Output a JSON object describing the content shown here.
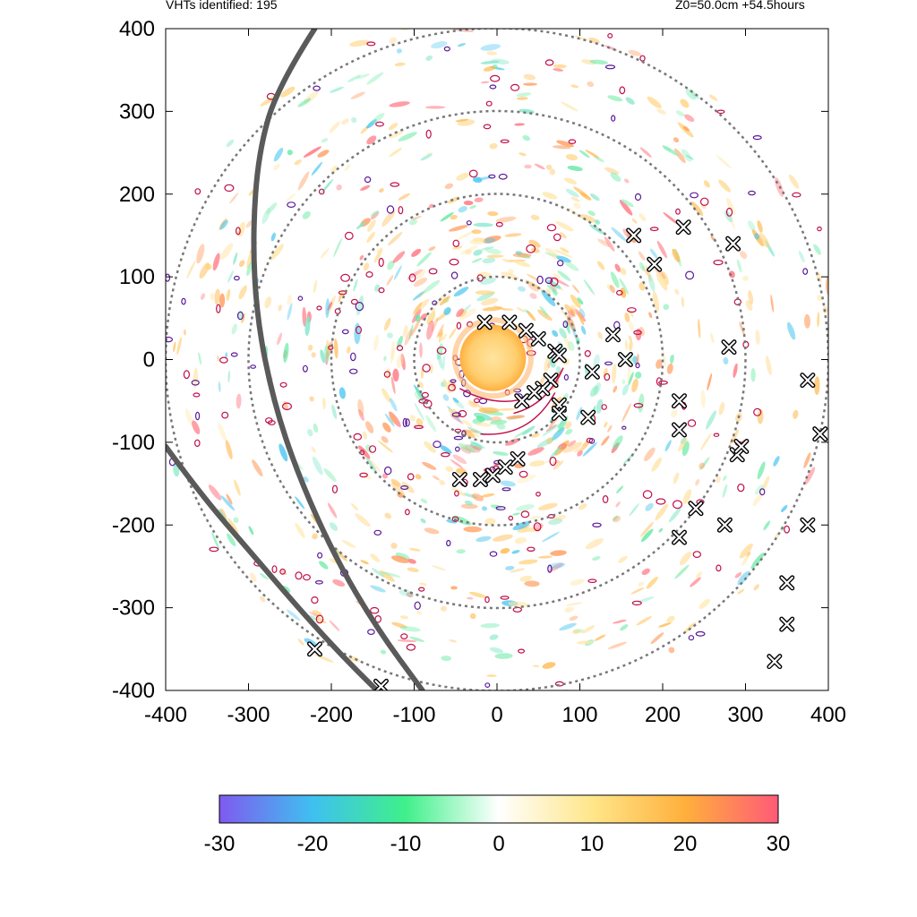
{
  "header": {
    "vht_count_text": "VHTs identified: 195",
    "level_time_text": "Z0=50.0cm  +54.5hours"
  },
  "chart_data": {
    "type": "heatmap",
    "title": "",
    "xlabel": "",
    "ylabel": "",
    "xlim": [
      -400,
      400
    ],
    "ylim": [
      -400,
      400
    ],
    "x_ticks": [
      -400,
      -300,
      -200,
      -100,
      0,
      100,
      200,
      300,
      400
    ],
    "y_ticks": [
      -400,
      -300,
      -200,
      -100,
      0,
      100,
      200,
      300,
      400
    ],
    "x_tick_labels": [
      "-400",
      "-300",
      "-200",
      "-100",
      "0",
      "100",
      "200",
      "300",
      "400"
    ],
    "y_tick_labels": [
      "-400",
      "-300",
      "-200",
      "-100",
      "0",
      "100",
      "200",
      "300",
      "400"
    ],
    "range_rings_radius": [
      100,
      200,
      300,
      400
    ],
    "vht_count": 195,
    "level_cm": 50.0,
    "forecast_hour": 54.5,
    "colorbar": {
      "min": -30,
      "max": 30,
      "ticks": [
        -30,
        -20,
        -10,
        0,
        10,
        20,
        30
      ],
      "tick_labels": [
        "-30",
        "-20",
        "-10",
        "0",
        "10",
        "20",
        "30"
      ],
      "colors": [
        "#7f5af0",
        "#3fc0f0",
        "#3ff08a",
        "#ffffff",
        "#ffe68a",
        "#ffb03c",
        "#ff5a78"
      ]
    },
    "vht_markers": [
      {
        "x": -15,
        "y": 45
      },
      {
        "x": 15,
        "y": 45
      },
      {
        "x": 35,
        "y": 35
      },
      {
        "x": 50,
        "y": 25
      },
      {
        "x": 70,
        "y": 10
      },
      {
        "x": 75,
        "y": 5
      },
      {
        "x": 65,
        "y": -25
      },
      {
        "x": 55,
        "y": -35
      },
      {
        "x": 45,
        "y": -40
      },
      {
        "x": 30,
        "y": -50
      },
      {
        "x": 75,
        "y": -55
      },
      {
        "x": 75,
        "y": -65
      },
      {
        "x": 115,
        "y": -15
      },
      {
        "x": 110,
        "y": -70
      },
      {
        "x": 140,
        "y": 30
      },
      {
        "x": 155,
        "y": 0
      },
      {
        "x": 165,
        "y": 150
      },
      {
        "x": 190,
        "y": 115
      },
      {
        "x": 225,
        "y": 160
      },
      {
        "x": 285,
        "y": 140
      },
      {
        "x": 280,
        "y": 15
      },
      {
        "x": 220,
        "y": -50
      },
      {
        "x": 220,
        "y": -85
      },
      {
        "x": 290,
        "y": -115
      },
      {
        "x": 295,
        "y": -105
      },
      {
        "x": 240,
        "y": -180
      },
      {
        "x": 275,
        "y": -200
      },
      {
        "x": 220,
        "y": -215
      },
      {
        "x": 375,
        "y": -25
      },
      {
        "x": 390,
        "y": -90
      },
      {
        "x": 375,
        "y": -200
      },
      {
        "x": 350,
        "y": -270
      },
      {
        "x": 350,
        "y": -320
      },
      {
        "x": 335,
        "y": -365
      },
      {
        "x": 25,
        "y": -120
      },
      {
        "x": 10,
        "y": -130
      },
      {
        "x": -5,
        "y": -140
      },
      {
        "x": -20,
        "y": -145
      },
      {
        "x": -45,
        "y": -145
      },
      {
        "x": -220,
        "y": -350
      },
      {
        "x": -140,
        "y": -395
      }
    ],
    "tracks": [
      {
        "points": [
          [
            -220,
            400
          ],
          [
            -265,
            330
          ],
          [
            -288,
            250
          ],
          [
            -295,
            150
          ],
          [
            -290,
            50
          ],
          [
            -270,
            -50
          ],
          [
            -240,
            -140
          ],
          [
            -195,
            -240
          ],
          [
            -145,
            -325
          ],
          [
            -90,
            -400
          ]
        ]
      },
      {
        "points": [
          [
            -400,
            -105
          ],
          [
            -360,
            -160
          ],
          [
            -300,
            -230
          ],
          [
            -240,
            -300
          ],
          [
            -190,
            -355
          ],
          [
            -145,
            -400
          ]
        ]
      }
    ]
  }
}
